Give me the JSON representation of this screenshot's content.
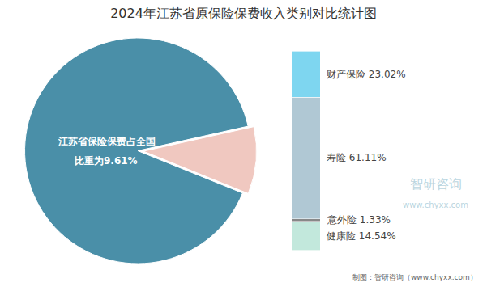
{
  "chart_data": [
    {
      "type": "pie",
      "title": "2024年江苏省原保险保费收入类别对比统计图",
      "values": [
        90.39,
        9.61
      ],
      "colors": [
        "#4A8FA8",
        "#F0C8C0"
      ],
      "annotations": [
        "江苏省保险保费占全国",
        "比重为9.61%"
      ]
    },
    {
      "type": "bar",
      "stacked": true,
      "categories": [
        null
      ],
      "series": [
        {
          "name": "健康险",
          "color": "#C2E8DC",
          "values": [
            14.54
          ],
          "value_labels": [
            "健康险 14.54%"
          ]
        },
        {
          "name": "意外险",
          "color": "#888888",
          "values": [
            1.33
          ],
          "value_labels": [
            "意外险 1.33%"
          ]
        },
        {
          "name": "寿险",
          "color": "#B0C8D4",
          "values": [
            61.11
          ],
          "value_labels": [
            "寿险 61.11%"
          ]
        },
        {
          "name": "财产保险",
          "color": "#7ED6F0",
          "values": [
            23.02
          ],
          "value_labels": [
            "财产保险 23.02%"
          ]
        }
      ],
      "ylim": [
        0,
        100
      ],
      "tick_labels": false,
      "data_labels": true,
      "annotations": [
        "智研咨询",
        "www.chyxx.com",
        "制图：智研咨询（www.chyxx.com）"
      ]
    }
  ]
}
